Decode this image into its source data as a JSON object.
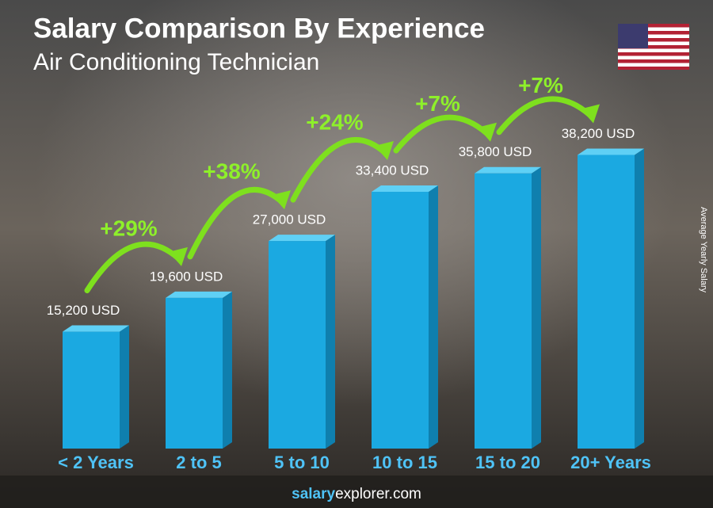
{
  "chart_data": {
    "type": "bar",
    "title": "Salary Comparison By Experience",
    "subtitle": "Air Conditioning Technician",
    "y_axis_label": "Average Yearly Salary",
    "categories": [
      "< 2 Years",
      "2 to 5",
      "5 to 10",
      "10 to 15",
      "15 to 20",
      "20+ Years"
    ],
    "values": [
      15200,
      19600,
      27000,
      33400,
      35800,
      38200
    ],
    "value_labels": [
      "15,200 USD",
      "19,600 USD",
      "27,000 USD",
      "33,400 USD",
      "35,800 USD",
      "38,200 USD"
    ],
    "annotations": [
      "+29%",
      "+38%",
      "+24%",
      "+7%",
      "+7%"
    ],
    "color": "#1ba9e1",
    "ylim": [
      0,
      40000
    ],
    "footer": [
      "salary",
      "explorer.com"
    ]
  }
}
